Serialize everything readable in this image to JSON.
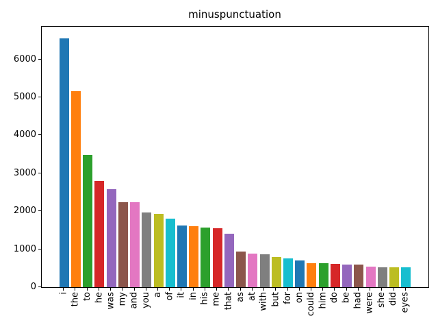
{
  "chart_data": {
    "type": "bar",
    "title": "minuspunctuation",
    "categories": [
      "i",
      "the",
      "to",
      "he",
      "was",
      "my",
      "and",
      "you",
      "a",
      "of",
      "it",
      "in",
      "his",
      "me",
      "that",
      "as",
      "at",
      "with",
      "but",
      "for",
      "on",
      "could",
      "him",
      "do",
      "be",
      "had",
      "were",
      "she",
      "did",
      "eyes"
    ],
    "values": [
      6550,
      5170,
      3490,
      2790,
      2590,
      2230,
      2230,
      1960,
      1940,
      1810,
      1630,
      1600,
      1570,
      1550,
      1410,
      930,
      880,
      870,
      790,
      750,
      710,
      640,
      625,
      620,
      605,
      595,
      535,
      530,
      515,
      515
    ],
    "bar_color_cycle": [
      "#1f77b4",
      "#ff7f0e",
      "#2ca02c",
      "#d62728",
      "#9467bd",
      "#8c564b",
      "#e377c2",
      "#7f7f7f",
      "#bcbd22",
      "#17becf"
    ],
    "xlabel": "",
    "ylabel": "",
    "ylim": [
      0,
      6860
    ],
    "yticks": [
      0,
      1000,
      2000,
      3000,
      4000,
      5000,
      6000
    ],
    "xtick_rotation": 90,
    "grid": false,
    "legend": null,
    "background": "#ffffff",
    "spine_color": "#000000"
  }
}
